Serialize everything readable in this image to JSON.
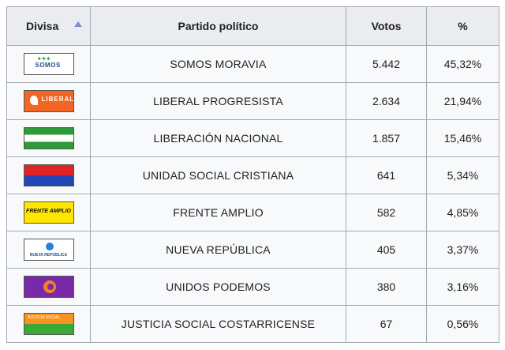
{
  "table": {
    "headers": {
      "divisa": "Divisa",
      "partido": "Partido político",
      "votos": "Votos",
      "pct": "%"
    },
    "rows": [
      {
        "flag": "somos",
        "flag_text": "SOMOS",
        "partido": "SOMOS MORAVIA",
        "votos": "5.442",
        "pct": "45,32%"
      },
      {
        "flag": "liberal",
        "flag_text": "LIBERAL",
        "partido": "LIBERAL PROGRESISTA",
        "votos": "2.634",
        "pct": "21,94%"
      },
      {
        "flag": "pln",
        "flag_text": "",
        "partido": "LIBERACIÓN NACIONAL",
        "votos": "1.857",
        "pct": "15,46%"
      },
      {
        "flag": "pusc",
        "flag_text": "",
        "partido": "UNIDAD SOCIAL CRISTIANA",
        "votos": "641",
        "pct": "5,34%"
      },
      {
        "flag": "fa",
        "flag_text": "FRENTE AMPLIO",
        "partido": "FRENTE AMPLIO",
        "votos": "582",
        "pct": "4,85%"
      },
      {
        "flag": "nr",
        "flag_text": "NUEVA REPÚBLICA",
        "partido": "NUEVA REPÚBLICA",
        "votos": "405",
        "pct": "3,37%"
      },
      {
        "flag": "up",
        "flag_text": "",
        "partido": "UNIDOS PODEMOS",
        "votos": "380",
        "pct": "3,16%"
      },
      {
        "flag": "pjsc",
        "flag_text": "JUSTICIA SOCIAL",
        "partido": "JUSTICIA SOCIAL COSTARRICENSE",
        "votos": "67",
        "pct": "0,56%"
      }
    ]
  }
}
